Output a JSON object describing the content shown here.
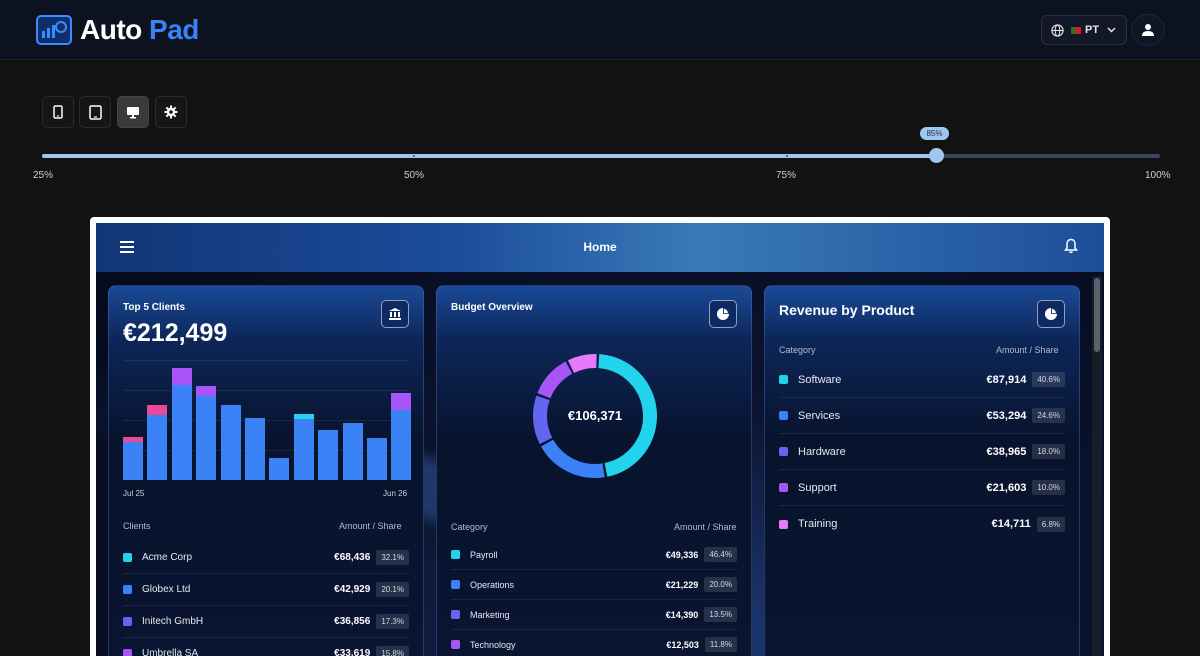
{
  "brand": {
    "word1": "Auto",
    "word2": "Pad"
  },
  "lang": {
    "code": "PT"
  },
  "icons": [
    "globe-icon",
    "chevron-down-icon",
    "user-icon",
    "phone-icon",
    "tablet-icon",
    "monitor-icon",
    "gear-icon",
    "menu-icon",
    "bell-icon",
    "bank-icon",
    "pie-chart-icon"
  ],
  "zoom": {
    "value": 85,
    "bubble": "85%",
    "min": 25,
    "max": 100,
    "ticks": [
      "25%",
      "50%",
      "75%",
      "100%"
    ]
  },
  "app": {
    "title": "Home"
  },
  "clients": {
    "title": "Top 5 Clients",
    "kpi": "€212,499",
    "axis_start": "Jul 25",
    "axis_end": "Jun 26",
    "col_left": "Clients",
    "col_right": "Amount / Share",
    "rows": [
      {
        "label": "Acme Corp",
        "amount": "€68,436",
        "share": "32.1%",
        "color": "#22d3ee"
      },
      {
        "label": "Globex Ltd",
        "amount": "€42,929",
        "share": "20.1%",
        "color": "#3b82f6"
      },
      {
        "label": "Initech GmbH",
        "amount": "€36,856",
        "share": "17.3%",
        "color": "#6366f1"
      },
      {
        "label": "Umbrella SA",
        "amount": "€33,619",
        "share": "15.8%",
        "color": "#a855f7"
      }
    ]
  },
  "chart_data": {
    "type": "bar",
    "stacked": true,
    "x_start": "Jul 25",
    "x_end": "Jun 26",
    "grid": true,
    "values_base": [
      38,
      65,
      95,
      84,
      75,
      62,
      22,
      61,
      50,
      57,
      42,
      70
    ],
    "values_top": [
      {
        "v": 5,
        "color": "#ec4899"
      },
      {
        "v": 10,
        "color": "#ec4899"
      },
      {
        "v": 17,
        "color": "#a855f7"
      },
      {
        "v": 10,
        "color": "#a855f7"
      },
      {
        "v": 0,
        "color": ""
      },
      {
        "v": 0,
        "color": ""
      },
      {
        "v": 0,
        "color": ""
      },
      {
        "v": 5,
        "color": "#22d3ee"
      },
      {
        "v": 0,
        "color": ""
      },
      {
        "v": 0,
        "color": ""
      },
      {
        "v": 0,
        "color": ""
      },
      {
        "v": 17,
        "color": "#a855f7"
      }
    ]
  },
  "budget": {
    "title": "Budget Overview",
    "center": "€106,371",
    "col_left": "Category",
    "col_right": "Amount / Share",
    "rows": [
      {
        "label": "Payroll",
        "amount": "€49,336",
        "share": "46.4%",
        "color": "#22d3ee"
      },
      {
        "label": "Operations",
        "amount": "€21,229",
        "share": "20.0%",
        "color": "#3b82f6"
      },
      {
        "label": "Marketing",
        "amount": "€14,390",
        "share": "13.5%",
        "color": "#6366f1"
      },
      {
        "label": "Technology",
        "amount": "€12,503",
        "share": "11.8%",
        "color": "#a855f7"
      }
    ],
    "donut": [
      {
        "v": 46.4,
        "color": "#22d3ee"
      },
      {
        "v": 20.0,
        "color": "#3b82f6"
      },
      {
        "v": 13.5,
        "color": "#6366f1"
      },
      {
        "v": 11.8,
        "color": "#a855f7"
      },
      {
        "v": 8.3,
        "color": "#e879f9"
      }
    ]
  },
  "revenue": {
    "title": "Revenue by Product",
    "col_left": "Category",
    "col_right": "Amount / Share",
    "rows": [
      {
        "label": "Software",
        "amount": "€87,914",
        "share": "40.6%",
        "color": "#22d3ee"
      },
      {
        "label": "Services",
        "amount": "€53,294",
        "share": "24.6%",
        "color": "#3b82f6"
      },
      {
        "label": "Hardware",
        "amount": "€38,965",
        "share": "18.0%",
        "color": "#6366f1"
      },
      {
        "label": "Support",
        "amount": "€21,603",
        "share": "10.0%",
        "color": "#a855f7"
      },
      {
        "label": "Training",
        "amount": "€14,711",
        "share": "6.8%",
        "color": "#e879f9"
      }
    ]
  }
}
